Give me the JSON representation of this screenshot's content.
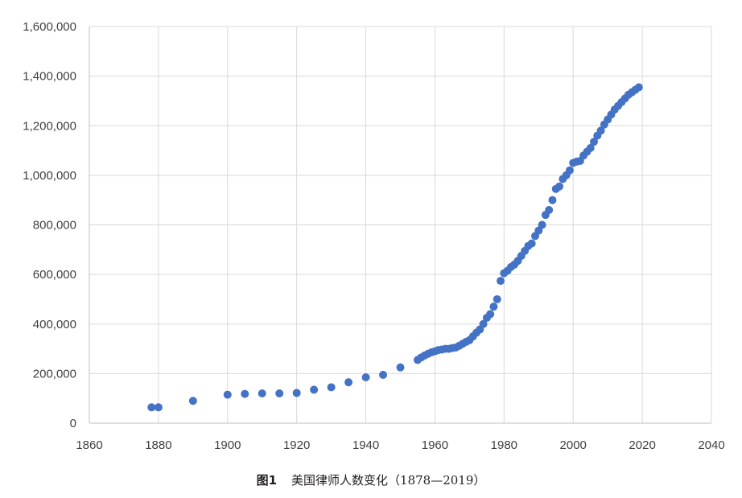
{
  "caption": {
    "figure_label": "图1",
    "text": "美国律师人数变化（1878—2019）"
  },
  "chart_data": {
    "type": "scatter",
    "title": "",
    "xlabel": "",
    "ylabel": "",
    "xlim": [
      1860,
      2040
    ],
    "ylim": [
      0,
      1600000
    ],
    "x_ticks": [
      1860,
      1880,
      1900,
      1920,
      1940,
      1960,
      1980,
      2000,
      2020,
      2040
    ],
    "x_tick_labels": [
      "1860",
      "1880",
      "1900",
      "1920",
      "1940",
      "1960",
      "1980",
      "2000",
      "2020",
      "2040"
    ],
    "y_ticks": [
      0,
      200000,
      400000,
      600000,
      800000,
      1000000,
      1200000,
      1400000,
      1600000
    ],
    "y_tick_labels": [
      "0",
      "200,000",
      "400,000",
      "600,000",
      "800,000",
      "1,000,000",
      "1,200,000",
      "1,400,000",
      "1,600,000"
    ],
    "grid": true,
    "legend": "none",
    "marker_color": "#4472c4",
    "grid_color": "#d9d9d9",
    "series": [
      {
        "x": [
          1878,
          1880,
          1890,
          1900,
          1905,
          1910,
          1915,
          1920,
          1925,
          1930,
          1935,
          1940,
          1945,
          1950,
          1955,
          1956,
          1957,
          1958,
          1959,
          1960,
          1961,
          1962,
          1963,
          1964,
          1965,
          1966,
          1967,
          1968,
          1969,
          1970,
          1971,
          1972,
          1973,
          1974,
          1975,
          1976,
          1977,
          1978,
          1979,
          1980,
          1981,
          1982,
          1983,
          1984,
          1985,
          1986,
          1987,
          1988,
          1989,
          1990,
          1991,
          1992,
          1993,
          1994,
          1995,
          1996,
          1997,
          1998,
          1999,
          2000,
          2001,
          2002,
          2003,
          2004,
          2005,
          2006,
          2007,
          2008,
          2009,
          2010,
          2011,
          2012,
          2013,
          2014,
          2015,
          2016,
          2017,
          2018,
          2019
        ],
        "y": [
          64000,
          64000,
          90000,
          115000,
          118000,
          120000,
          120000,
          122000,
          135000,
          145000,
          165000,
          185000,
          195000,
          225000,
          255000,
          265000,
          273000,
          280000,
          286000,
          290000,
          295000,
          297000,
          300000,
          300000,
          303000,
          305000,
          312000,
          320000,
          328000,
          335000,
          350000,
          365000,
          378000,
          400000,
          425000,
          440000,
          470000,
          500000,
          574000,
          605000,
          615000,
          630000,
          640000,
          655000,
          675000,
          695000,
          715000,
          725000,
          755000,
          777000,
          800000,
          840000,
          860000,
          900000,
          945000,
          955000,
          985000,
          1000000,
          1020000,
          1050000,
          1055000,
          1058000,
          1080000,
          1095000,
          1110000,
          1135000,
          1160000,
          1180000,
          1205000,
          1225000,
          1245000,
          1265000,
          1280000,
          1295000,
          1310000,
          1325000,
          1335000,
          1345000,
          1355000
        ]
      }
    ]
  }
}
